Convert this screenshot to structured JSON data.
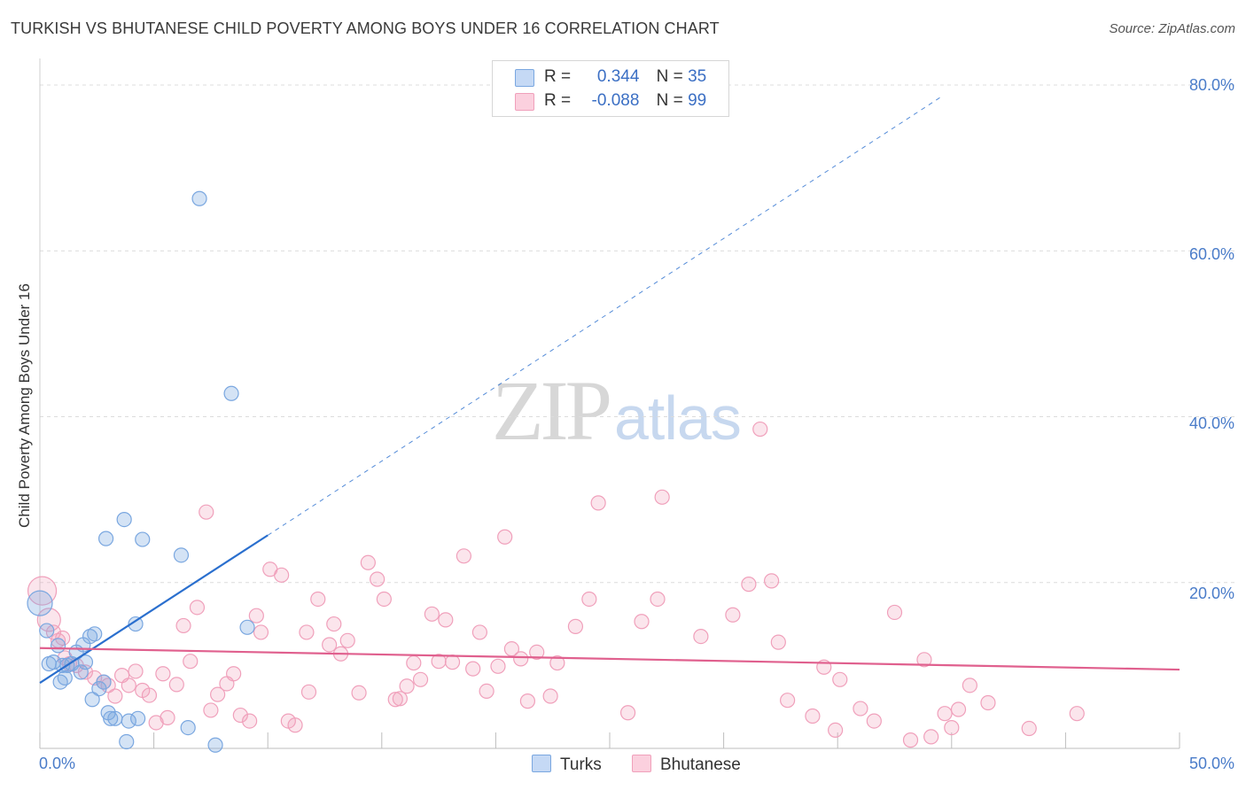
{
  "header": {
    "title": "TURKISH VS BHUTANESE CHILD POVERTY AMONG BOYS UNDER 16 CORRELATION CHART",
    "source": "Source: ZipAtlas.com"
  },
  "watermark": {
    "zip": "ZIP",
    "atlas": "atlas"
  },
  "legend": {
    "rows": [
      {
        "r_label": "R =",
        "r_value": "0.344",
        "n_label": "N =",
        "n_value": "35"
      },
      {
        "r_label": "R =",
        "r_value": "-0.088",
        "n_label": "N =",
        "n_value": "99"
      }
    ]
  },
  "bottom_legend": {
    "turks": "Turks",
    "bhutanese": "Bhutanese"
  },
  "axis_labels": {
    "y_ticks": [
      "80.0%",
      "60.0%",
      "40.0%",
      "20.0%"
    ],
    "x_min": "0.0%",
    "x_max": "50.0%"
  },
  "chart_data": {
    "type": "scatter",
    "title": "TURKISH VS BHUTANESE CHILD POVERTY AMONG BOYS UNDER 16 CORRELATION CHART",
    "xlabel": "",
    "ylabel": "Child Poverty Among Boys Under 16",
    "xlim": [
      0,
      50
    ],
    "ylim": [
      0,
      80
    ],
    "colors": {
      "turks": "#7aa7e0",
      "bhutanese": "#f0a0bb",
      "turks_line": "#2a6fce",
      "bhutanese_line": "#e0608e"
    },
    "series": [
      {
        "name": "Turks",
        "R": 0.344,
        "N": 35,
        "trend": {
          "x0": 0,
          "y0": 7.9,
          "x1": 10,
          "y1": 25.7,
          "dashed_to_x": 39.5,
          "dashed_to_y": 78.5
        },
        "points": [
          [
            0.0,
            17.5
          ],
          [
            0.3,
            14.2
          ],
          [
            0.4,
            10.2
          ],
          [
            0.6,
            10.4
          ],
          [
            0.8,
            12.4
          ],
          [
            0.9,
            8.0
          ],
          [
            1.0,
            10.0
          ],
          [
            1.1,
            8.5
          ],
          [
            1.2,
            10.0
          ],
          [
            1.4,
            10.2
          ],
          [
            1.6,
            11.6
          ],
          [
            1.8,
            9.2
          ],
          [
            1.9,
            12.5
          ],
          [
            2.0,
            10.4
          ],
          [
            2.2,
            13.5
          ],
          [
            2.3,
            5.9
          ],
          [
            2.4,
            13.8
          ],
          [
            2.6,
            7.2
          ],
          [
            2.8,
            8.0
          ],
          [
            2.9,
            25.3
          ],
          [
            3.0,
            4.3
          ],
          [
            3.1,
            3.6
          ],
          [
            3.3,
            3.6
          ],
          [
            3.7,
            27.6
          ],
          [
            3.8,
            0.8
          ],
          [
            3.9,
            3.3
          ],
          [
            4.2,
            15.0
          ],
          [
            4.3,
            3.6
          ],
          [
            4.5,
            25.2
          ],
          [
            6.2,
            23.3
          ],
          [
            6.5,
            2.5
          ],
          [
            7.0,
            66.3
          ],
          [
            7.7,
            0.4
          ],
          [
            8.4,
            42.8
          ],
          [
            9.1,
            14.6
          ]
        ]
      },
      {
        "name": "Bhutanese",
        "R": -0.088,
        "N": 99,
        "trend": {
          "x0": 0,
          "y0": 12.1,
          "x1": 50,
          "y1": 9.5
        },
        "points": [
          [
            0.1,
            19.0
          ],
          [
            0.4,
            15.5
          ],
          [
            0.6,
            14.0
          ],
          [
            0.8,
            13.0
          ],
          [
            1.0,
            13.3
          ],
          [
            1.1,
            10.9
          ],
          [
            1.3,
            10.2
          ],
          [
            1.6,
            10.0
          ],
          [
            2.0,
            9.2
          ],
          [
            2.4,
            8.5
          ],
          [
            2.8,
            8.0
          ],
          [
            3.0,
            7.6
          ],
          [
            3.3,
            6.3
          ],
          [
            3.6,
            8.8
          ],
          [
            3.9,
            7.6
          ],
          [
            4.2,
            9.3
          ],
          [
            4.5,
            7.0
          ],
          [
            4.8,
            6.4
          ],
          [
            5.1,
            3.1
          ],
          [
            5.4,
            9.0
          ],
          [
            5.6,
            3.7
          ],
          [
            6.0,
            7.7
          ],
          [
            6.3,
            14.8
          ],
          [
            6.6,
            10.5
          ],
          [
            6.9,
            17.0
          ],
          [
            7.3,
            28.5
          ],
          [
            7.5,
            4.6
          ],
          [
            7.8,
            6.5
          ],
          [
            8.2,
            7.8
          ],
          [
            8.5,
            9.0
          ],
          [
            8.8,
            4.0
          ],
          [
            9.2,
            3.3
          ],
          [
            9.5,
            16.0
          ],
          [
            9.7,
            14.0
          ],
          [
            10.1,
            21.6
          ],
          [
            10.6,
            20.9
          ],
          [
            10.9,
            3.3
          ],
          [
            11.2,
            2.8
          ],
          [
            11.7,
            14.0
          ],
          [
            11.8,
            6.8
          ],
          [
            12.2,
            18.0
          ],
          [
            12.7,
            12.5
          ],
          [
            12.9,
            15.0
          ],
          [
            13.2,
            11.4
          ],
          [
            13.5,
            13.0
          ],
          [
            14.0,
            6.7
          ],
          [
            14.4,
            22.4
          ],
          [
            14.8,
            20.4
          ],
          [
            15.1,
            18.0
          ],
          [
            15.6,
            5.9
          ],
          [
            15.8,
            6.0
          ],
          [
            16.1,
            7.5
          ],
          [
            16.4,
            10.3
          ],
          [
            16.7,
            8.3
          ],
          [
            17.2,
            16.2
          ],
          [
            17.5,
            10.5
          ],
          [
            17.8,
            15.5
          ],
          [
            18.1,
            10.4
          ],
          [
            18.6,
            23.2
          ],
          [
            19.0,
            9.6
          ],
          [
            19.3,
            14.0
          ],
          [
            19.6,
            6.9
          ],
          [
            20.1,
            9.9
          ],
          [
            20.4,
            25.5
          ],
          [
            20.7,
            12.0
          ],
          [
            21.1,
            10.8
          ],
          [
            21.4,
            5.7
          ],
          [
            21.8,
            11.6
          ],
          [
            22.4,
            6.3
          ],
          [
            22.7,
            10.3
          ],
          [
            23.5,
            14.7
          ],
          [
            24.1,
            18.0
          ],
          [
            24.5,
            29.6
          ],
          [
            25.8,
            4.3
          ],
          [
            26.4,
            15.3
          ],
          [
            27.1,
            18.0
          ],
          [
            27.3,
            30.3
          ],
          [
            29.0,
            13.5
          ],
          [
            30.4,
            16.1
          ],
          [
            31.1,
            19.8
          ],
          [
            31.6,
            38.5
          ],
          [
            32.1,
            20.2
          ],
          [
            32.4,
            12.8
          ],
          [
            32.8,
            5.8
          ],
          [
            33.9,
            3.9
          ],
          [
            34.4,
            9.8
          ],
          [
            34.9,
            2.2
          ],
          [
            35.1,
            8.3
          ],
          [
            36.0,
            4.8
          ],
          [
            36.6,
            3.3
          ],
          [
            37.5,
            16.4
          ],
          [
            38.2,
            1.0
          ],
          [
            38.8,
            10.7
          ],
          [
            39.1,
            1.4
          ],
          [
            39.7,
            4.2
          ],
          [
            40.0,
            2.5
          ],
          [
            40.3,
            4.7
          ],
          [
            40.8,
            7.6
          ],
          [
            41.6,
            5.5
          ],
          [
            43.4,
            2.4
          ],
          [
            45.5,
            4.2
          ]
        ]
      }
    ]
  }
}
